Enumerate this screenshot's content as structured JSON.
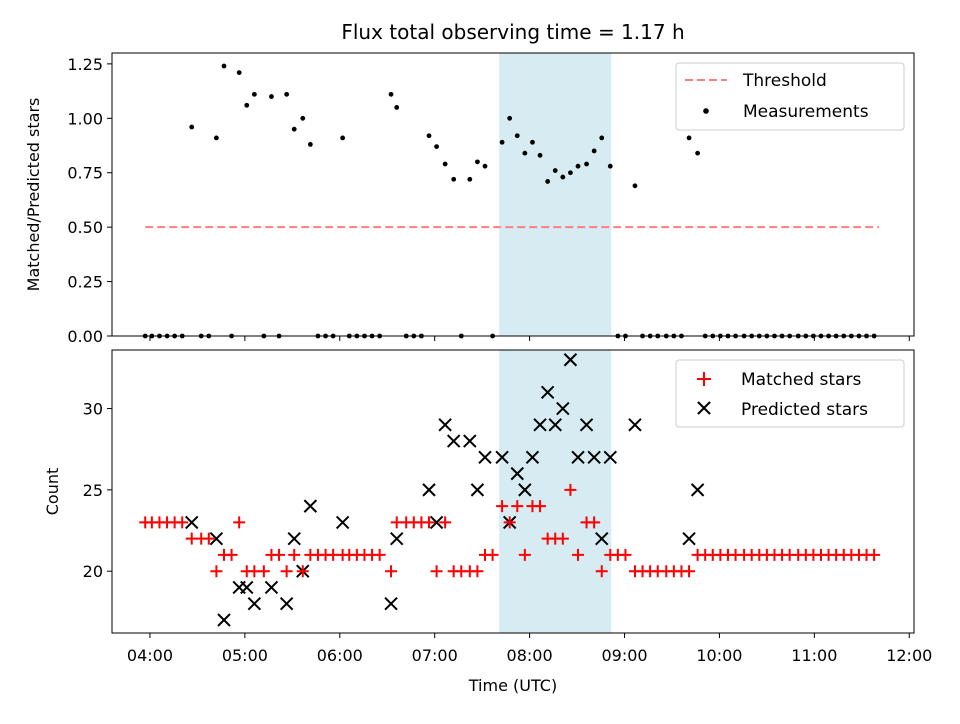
{
  "chart_data": [
    {
      "type": "scatter",
      "title": "Flux total observing time = 1.17 h",
      "xlabel": "",
      "ylabel": "Matched/Predicted stars",
      "xlim": [
        3.6,
        12.05
      ],
      "ylim": [
        0,
        1.3
      ],
      "yticks": [
        0.0,
        0.25,
        0.5,
        0.75,
        1.0,
        1.25
      ],
      "ytick_labels": [
        "0.00",
        "0.25",
        "0.50",
        "0.75",
        "1.00",
        "1.25"
      ],
      "legend_position": "top-right",
      "shaded_span": [
        7.68,
        8.86
      ],
      "colors": {
        "threshold": "#ff7f7f",
        "measurements": "#000000",
        "span": "#add8e6"
      },
      "series": [
        {
          "name": "Threshold",
          "style": "dashed-line",
          "x": [
            3.95,
            11.68
          ],
          "y": [
            0.5,
            0.5
          ]
        },
        {
          "name": "Measurements",
          "style": "dots",
          "x": [
            3.95,
            4.02,
            4.1,
            4.18,
            4.26,
            4.34,
            4.44,
            4.54,
            4.62,
            4.7,
            4.78,
            4.86,
            4.94,
            5.02,
            5.1,
            5.2,
            5.28,
            5.36,
            5.44,
            5.52,
            5.61,
            5.69,
            5.77,
            5.85,
            5.93,
            6.03,
            6.1,
            6.18,
            6.26,
            6.34,
            6.42,
            6.54,
            6.6,
            6.7,
            6.78,
            6.86,
            6.94,
            7.02,
            7.11,
            7.2,
            7.28,
            7.37,
            7.45,
            7.53,
            7.61,
            7.71,
            7.79,
            7.87,
            7.95,
            8.03,
            8.11,
            8.19,
            8.27,
            8.35,
            8.43,
            8.51,
            8.6,
            8.68,
            8.76,
            8.85,
            8.93,
            9.01,
            9.11,
            9.19,
            9.27,
            9.35,
            9.44,
            9.52,
            9.6,
            9.68,
            9.77,
            9.85,
            9.93,
            10.01,
            10.09,
            10.17,
            10.26,
            10.34,
            10.42,
            10.5,
            10.58,
            10.66,
            10.74,
            10.83,
            10.91,
            10.99,
            11.07,
            11.15,
            11.23,
            11.31,
            11.39,
            11.47,
            11.55,
            11.63
          ],
          "y": [
            0,
            0,
            0,
            0,
            0,
            0,
            0.96,
            0,
            0,
            0.91,
            1.24,
            0,
            1.21,
            1.06,
            1.11,
            0,
            1.1,
            0,
            1.11,
            0.95,
            1.0,
            0.88,
            0,
            0,
            0,
            0.91,
            0,
            0,
            0,
            0,
            0,
            1.11,
            1.05,
            0,
            0,
            0,
            0.92,
            0.87,
            0.79,
            0.72,
            0,
            0.72,
            0.8,
            0.78,
            0,
            0.89,
            1.0,
            0.92,
            0.84,
            0.89,
            0.83,
            0.71,
            0.76,
            0.73,
            0.75,
            0.78,
            0.79,
            0.85,
            0.91,
            0.78,
            0,
            0,
            0.69,
            0,
            0,
            0,
            0,
            0,
            0,
            0.91,
            0.84,
            0,
            0,
            0,
            0,
            0,
            0,
            0,
            0,
            0,
            0,
            0,
            0,
            0,
            0,
            0,
            0,
            0,
            0,
            0,
            0,
            0,
            0,
            0
          ]
        }
      ]
    },
    {
      "type": "scatter",
      "title": "",
      "xlabel": "Time (UTC)",
      "ylabel": "Count",
      "xlim": [
        3.6,
        12.05
      ],
      "ylim": [
        16.2,
        33.6
      ],
      "yticks": [
        20,
        25,
        30
      ],
      "ytick_labels": [
        "20",
        "25",
        "30"
      ],
      "xticks": [
        4,
        5,
        6,
        7,
        8,
        9,
        10,
        11,
        12
      ],
      "xtick_labels": [
        "04:00",
        "05:00",
        "06:00",
        "07:00",
        "08:00",
        "09:00",
        "10:00",
        "11:00",
        "12:00"
      ],
      "legend_position": "top-right",
      "shaded_span": [
        7.68,
        8.86
      ],
      "colors": {
        "matched": "#ff0000",
        "predicted": "#000000",
        "span": "#add8e6"
      },
      "series": [
        {
          "name": "Matched stars",
          "marker": "plus",
          "x": [
            3.95,
            4.02,
            4.1,
            4.18,
            4.26,
            4.34,
            4.44,
            4.54,
            4.62,
            4.7,
            4.78,
            4.86,
            4.94,
            5.02,
            5.1,
            5.2,
            5.28,
            5.36,
            5.44,
            5.52,
            5.61,
            5.69,
            5.77,
            5.85,
            5.93,
            6.03,
            6.1,
            6.18,
            6.26,
            6.34,
            6.42,
            6.54,
            6.6,
            6.7,
            6.78,
            6.86,
            6.94,
            7.02,
            7.11,
            7.2,
            7.28,
            7.37,
            7.45,
            7.53,
            7.61,
            7.71,
            7.79,
            7.87,
            7.95,
            8.03,
            8.11,
            8.19,
            8.27,
            8.35,
            8.43,
            8.51,
            8.6,
            8.68,
            8.76,
            8.85,
            8.93,
            9.01,
            9.11,
            9.19,
            9.27,
            9.35,
            9.44,
            9.52,
            9.6,
            9.68,
            9.77,
            9.85,
            9.93,
            10.01,
            10.09,
            10.17,
            10.26,
            10.34,
            10.42,
            10.5,
            10.58,
            10.66,
            10.74,
            10.83,
            10.91,
            10.99,
            11.07,
            11.15,
            11.23,
            11.31,
            11.39,
            11.47,
            11.55,
            11.63
          ],
          "y": [
            23,
            23,
            23,
            23,
            23,
            23,
            22,
            22,
            22,
            20,
            21,
            21,
            23,
            20,
            20,
            20,
            21,
            21,
            20,
            21,
            20,
            21,
            21,
            21,
            21,
            21,
            21,
            21,
            21,
            21,
            21,
            20,
            23,
            23,
            23,
            23,
            23,
            20,
            23,
            20,
            20,
            20,
            20,
            21,
            21,
            24,
            23,
            24,
            21,
            24,
            24,
            22,
            22,
            22,
            25,
            21,
            23,
            23,
            20,
            21,
            21,
            21,
            20,
            20,
            20,
            20,
            20,
            20,
            20,
            20,
            21,
            21,
            21,
            21,
            21,
            21,
            21,
            21,
            21,
            21,
            21,
            21,
            21,
            21,
            21,
            21,
            21,
            21,
            21,
            21,
            21,
            21,
            21,
            21
          ]
        },
        {
          "name": "Predicted stars",
          "marker": "x",
          "x": [
            4.44,
            4.7,
            4.78,
            4.94,
            5.02,
            5.1,
            5.28,
            5.44,
            5.52,
            5.61,
            5.69,
            6.03,
            6.54,
            6.6,
            6.94,
            7.02,
            7.11,
            7.2,
            7.37,
            7.45,
            7.53,
            7.71,
            7.79,
            7.87,
            7.95,
            8.03,
            8.11,
            8.19,
            8.27,
            8.35,
            8.43,
            8.51,
            8.6,
            8.68,
            8.76,
            8.85,
            9.11,
            9.68,
            9.77
          ],
          "y": [
            23,
            22,
            17,
            19,
            19,
            18,
            19,
            18,
            22,
            20,
            24,
            23,
            18,
            22,
            25,
            23,
            29,
            28,
            28,
            25,
            27,
            27,
            23,
            26,
            25,
            27,
            29,
            31,
            29,
            30,
            33,
            27,
            29,
            27,
            22,
            27,
            29,
            22,
            25
          ]
        }
      ]
    }
  ]
}
